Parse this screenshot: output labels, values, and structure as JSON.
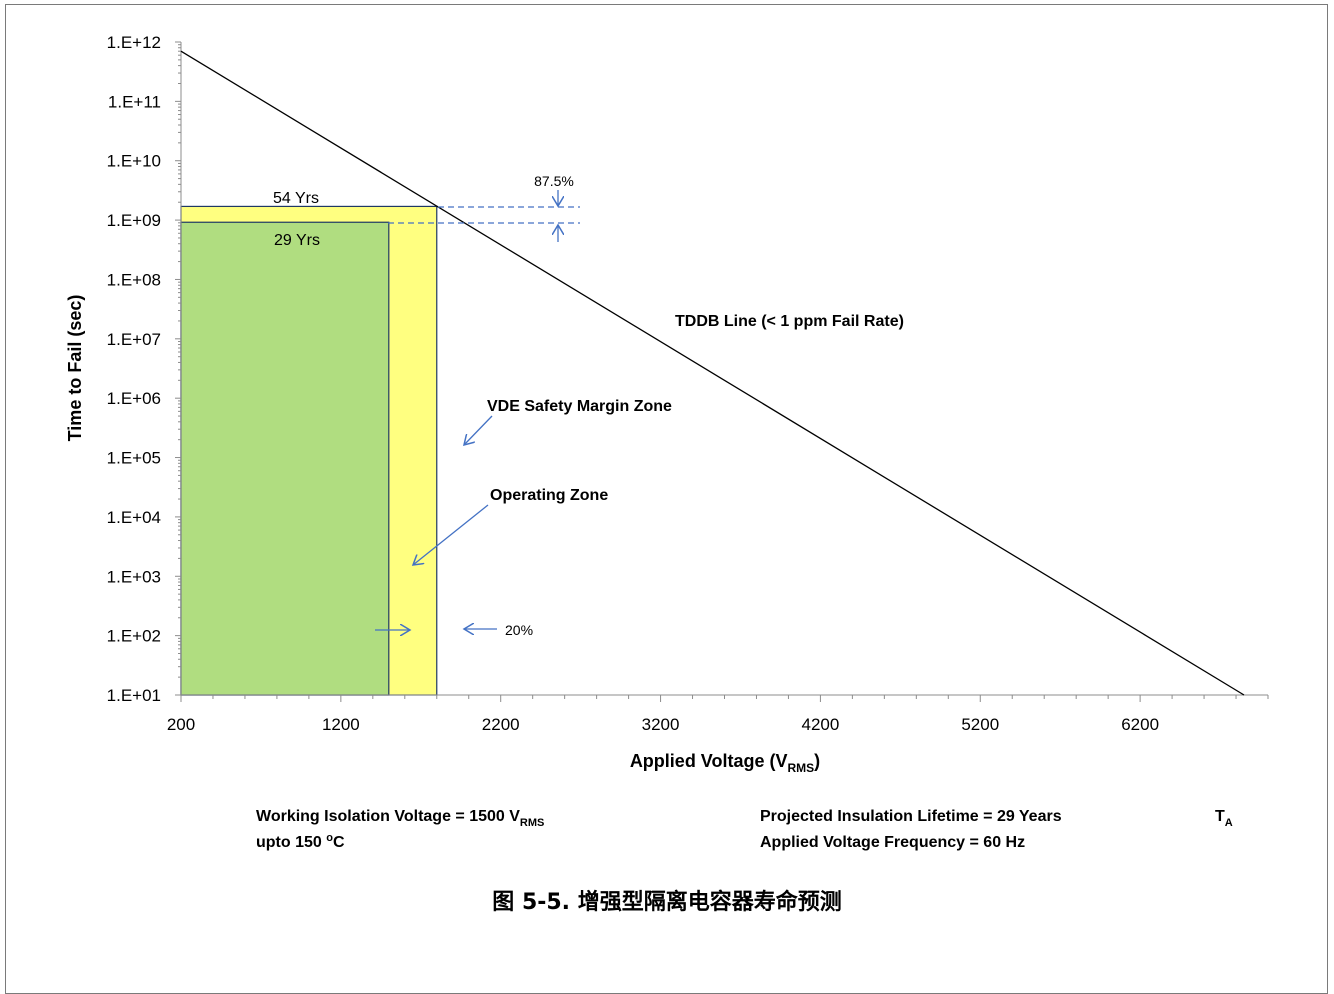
{
  "chart_data": {
    "type": "line",
    "title": "",
    "xlabel": "Applied Voltage (V",
    "xlabel_sub": "RMS",
    "xlabel_end": ")",
    "ylabel": "Time to Fail (sec)",
    "x_ticks": [
      "200",
      "1200",
      "2200",
      "3200",
      "4200",
      "5200",
      "6200"
    ],
    "y_ticks": [
      "1.E+01",
      "1.E+02",
      "1.E+03",
      "1.E+04",
      "1.E+05",
      "1.E+06",
      "1.E+07",
      "1.E+08",
      "1.E+09",
      "1.E+10",
      "1.E+11",
      "1.E+12"
    ],
    "xlim": [
      200,
      7000
    ],
    "ylim": [
      10.0,
      1000000000000.0
    ],
    "y_scale": "log",
    "grid": false,
    "series": [
      {
        "name": "TDDB Line (< 1 ppm Fail Rate)",
        "x": [
          200,
          6850
        ],
        "y": [
          700000000000.0,
          10.0
        ]
      }
    ],
    "zones": [
      {
        "name": "VDE Safety Margin Zone",
        "x_start": 200,
        "x_end": 1800,
        "y_top": 1700000000.0,
        "color": "#FFFF80"
      },
      {
        "name": "Operating  Zone",
        "x_start": 200,
        "x_end": 1500,
        "y_top": 920000000.0,
        "color": "#B0DD80"
      }
    ],
    "annotations": {
      "yrs_54": "54 Yrs",
      "yrs_29": "29 Yrs",
      "pct_875": "87.5%",
      "pct_20": "20%",
      "tddb_label": "TDDB Line (< 1 ppm Fail Rate)",
      "vde_label": "VDE Safety Margin Zone",
      "operating_label": "Operating  Zone"
    }
  },
  "notes": {
    "working_voltage": "Working Isolation Voltage = 1500 V",
    "working_voltage_sub": "RMS",
    "temperature_prefix": "upto 150 ",
    "temperature_sup": "o",
    "temperature_suffix": "C",
    "lifetime": "Projected Insulation Lifetime =  29 Years",
    "frequency": "Applied Voltage Frequency = 60 Hz",
    "ta": "T",
    "ta_sub": "A"
  },
  "caption": "图 5-5. 增强型隔离电容器寿命预测",
  "colors": {
    "line": "#000000",
    "arrow": "#4472C4",
    "zone_yellow": "#FFFF80",
    "zone_green": "#B0DD80",
    "zone_border": "#1F3864"
  }
}
